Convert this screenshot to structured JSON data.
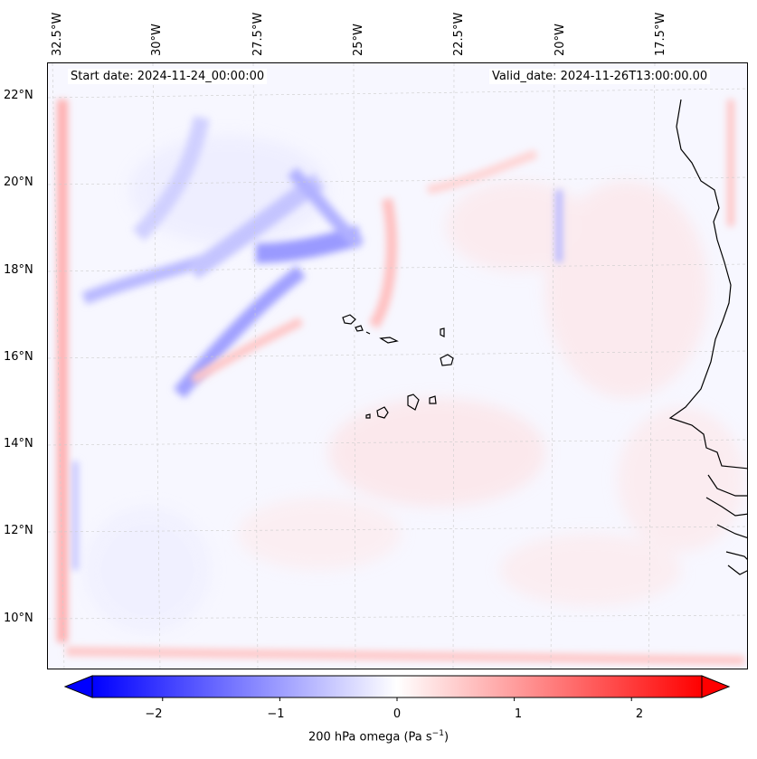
{
  "map": {
    "title_left": "Start date: 2024-11-24_00:00:00",
    "title_right": "Valid_date: 2024-11-26T13:00:00.00",
    "longitude_labels": [
      "32.5°W",
      "30°W",
      "27.5°W",
      "25°W",
      "22.5°W",
      "20°W",
      "17.5°W"
    ],
    "latitude_labels": [
      "22°N",
      "20°N",
      "18°N",
      "16°N",
      "14°N",
      "12°N",
      "10°N"
    ],
    "colors": {
      "negative": "#0000ff",
      "positive": "#ff0000",
      "neutral": "#ffffff",
      "coastline": "#000000",
      "gridline": "#cccccc"
    }
  },
  "colorbar": {
    "label": "200 hPa omega (Pa s",
    "label_superscript": "−1",
    "label_suffix": ")",
    "ticks": [
      "−2",
      "−1",
      "0",
      "1",
      "2"
    ],
    "tick_values": [
      -2,
      -1,
      0,
      1,
      2
    ],
    "range": [
      -2.6,
      2.6
    ],
    "extend": "both"
  }
}
